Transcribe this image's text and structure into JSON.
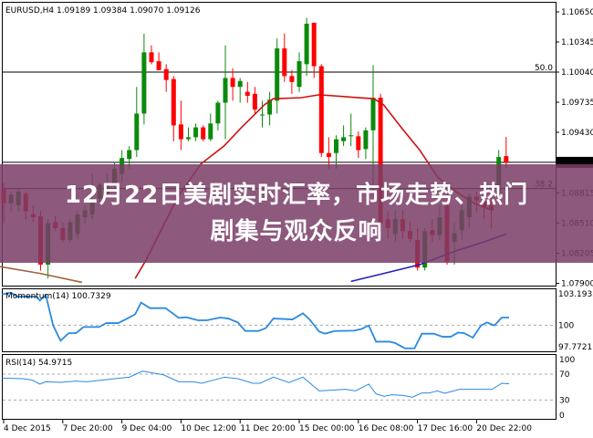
{
  "header": {
    "symbol_line": "EURUSD,H4  1.09189 1.09384 1.09070 1.09126"
  },
  "banner": {
    "line1": "12月22日美剧实时汇率，市场走势、热门",
    "line2": "剧集与观众反响"
  },
  "price_axis": {
    "labels": [
      "1.10650",
      "1.10345",
      "1.10040",
      "1.09735",
      "1.09430",
      "1.08815",
      "1.08510",
      "1.08205",
      "1.07900"
    ],
    "current": "1.09126"
  },
  "levels": [
    {
      "label": "50.0",
      "price": 1.1004
    },
    {
      "label": "38.2",
      "price": 1.0886
    }
  ],
  "momentum": {
    "title": "Momentum(14) 100.7329",
    "axis": [
      "103.1932",
      "100",
      "97.7721"
    ]
  },
  "rsi": {
    "title": "RSI(14) 54.9715",
    "axis": [
      "100",
      "70",
      "30",
      "0"
    ]
  },
  "time_axis": [
    "4 Dec 2015",
    "7 Dec 20:00",
    "9 Dec 04:00",
    "10 Dec 12:00",
    "11 Dec 20:00",
    "15 Dec 00:00",
    "16 Dec 08:00",
    "17 Dec 16:00",
    "20 Dec 22:00"
  ],
  "colors": {
    "bull": "#0b8a0b",
    "bear": "#ff0000",
    "ma": "#d01010",
    "ma_slow": "#a0623a",
    "ma_blue": "#2020c0",
    "indicator": "#2a8ae0",
    "banner": "#7a3e68"
  },
  "chart_data": {
    "type": "candlestick",
    "candles": [
      [
        1.0886,
        1.0892,
        1.0851,
        1.0871
      ],
      [
        1.0871,
        1.0883,
        1.0863,
        1.088
      ],
      [
        1.0869,
        1.0886,
        1.0863,
        1.0883
      ],
      [
        1.0881,
        1.0883,
        1.0855,
        1.0863
      ],
      [
        1.086,
        1.0869,
        1.0852,
        1.0857
      ],
      [
        1.0858,
        1.0864,
        1.0803,
        1.0809
      ],
      [
        1.0809,
        1.0855,
        1.0795,
        1.0851
      ],
      [
        1.0852,
        1.0858,
        1.0843,
        1.0846
      ],
      [
        1.0846,
        1.0852,
        1.0832,
        1.0834
      ],
      [
        1.0834,
        1.0855,
        1.0832,
        1.0852
      ],
      [
        1.084,
        1.0863,
        1.0835,
        1.086
      ],
      [
        1.0857,
        1.0869,
        1.0851,
        1.0864
      ],
      [
        1.086,
        1.0901,
        1.0855,
        1.0872
      ],
      [
        1.0876,
        1.0892,
        1.0869,
        1.089
      ],
      [
        1.0881,
        1.0901,
        1.0876,
        1.089
      ],
      [
        1.0889,
        1.0913,
        1.0883,
        1.0906
      ],
      [
        1.0901,
        1.0925,
        1.0892,
        1.0917
      ],
      [
        1.0916,
        1.0929,
        1.0906,
        1.0925
      ],
      [
        1.0925,
        1.0989,
        1.0918,
        1.0962
      ],
      [
        1.0962,
        1.1043,
        1.0951,
        1.1024
      ],
      [
        1.1024,
        1.1031,
        1.1012,
        1.1014
      ],
      [
        1.1015,
        1.1024,
        1.1006,
        1.1006
      ],
      [
        1.1007,
        1.1012,
        1.0984,
        1.0996
      ],
      [
        1.0997,
        1.1,
        1.0934,
        1.095
      ],
      [
        1.0951,
        1.0975,
        1.0925,
        1.0936
      ],
      [
        1.0936,
        1.0948,
        1.0934,
        1.0938
      ],
      [
        1.0938,
        1.0952,
        1.0934,
        1.0948
      ],
      [
        1.0948,
        1.095,
        1.0934,
        1.0936
      ],
      [
        1.0936,
        1.0962,
        1.0934,
        1.0952
      ],
      [
        1.0952,
        1.0975,
        1.0945,
        1.0973
      ],
      [
        1.0973,
        1.1031,
        1.0936,
        1.0998
      ],
      [
        1.0998,
        1.1008,
        1.0975,
        1.0989
      ],
      [
        1.0989,
        1.0998,
        1.0973,
        1.0995
      ],
      [
        1.0984,
        1.0994,
        1.0973,
        1.098
      ],
      [
        1.0982,
        1.0989,
        1.0962,
        1.0966
      ],
      [
        1.096,
        1.0975,
        1.0948,
        1.0961
      ],
      [
        1.0961,
        1.0984,
        1.095,
        1.0976
      ],
      [
        1.0975,
        1.1038,
        1.0962,
        1.1028
      ],
      [
        1.1028,
        1.1043,
        1.0994,
        1.1
      ],
      [
        1.1,
        1.1006,
        1.0982,
        1.0994
      ],
      [
        1.0989,
        1.1024,
        1.0984,
        1.1015
      ],
      [
        1.1012,
        1.1059,
        1.1,
        1.1053
      ],
      [
        1.1054,
        1.1054,
        1.0998,
        1.101
      ],
      [
        1.101,
        1.1012,
        1.0918,
        1.0922
      ],
      [
        1.0922,
        1.0938,
        1.0906,
        1.0918
      ],
      [
        1.0922,
        1.094,
        1.0906,
        1.0936
      ],
      [
        1.0934,
        1.095,
        1.0929,
        1.0938
      ],
      [
        1.0939,
        1.0962,
        1.0929,
        1.094
      ],
      [
        1.0939,
        1.0944,
        1.0917,
        1.0925
      ],
      [
        1.0926,
        1.0948,
        1.0916,
        1.0945
      ],
      [
        1.0945,
        1.1011,
        1.088,
        1.0978
      ],
      [
        1.0978,
        1.0982,
        1.0846,
        1.0851
      ],
      [
        1.0855,
        1.0863,
        1.0835,
        1.0846
      ],
      [
        1.084,
        1.0864,
        1.0832,
        1.0855
      ],
      [
        1.0855,
        1.0864,
        1.0835,
        1.0843
      ],
      [
        1.0843,
        1.0852,
        1.0832,
        1.0835
      ],
      [
        1.0834,
        1.0846,
        1.0803,
        1.0806
      ],
      [
        1.0806,
        1.0846,
        1.0803,
        1.0843
      ],
      [
        1.0844,
        1.0855,
        1.0832,
        1.0839
      ],
      [
        1.0839,
        1.0869,
        1.0834,
        1.0857
      ],
      [
        1.0869,
        1.0883,
        1.0809,
        1.0812
      ],
      [
        1.0832,
        1.0851,
        1.0809,
        1.0841
      ],
      [
        1.0844,
        1.0869,
        1.0834,
        1.0864
      ],
      [
        1.0857,
        1.0881,
        1.0846,
        1.0878
      ],
      [
        1.0878,
        1.0883,
        1.0863,
        1.0874
      ],
      [
        1.0874,
        1.0881,
        1.0855,
        1.0867
      ],
      [
        1.0869,
        1.0878,
        1.0846,
        1.0864
      ],
      [
        1.0878,
        1.0925,
        1.0869,
        1.0918
      ],
      [
        1.09189,
        1.09384,
        1.0907,
        1.09126
      ]
    ],
    "ma_red": [
      [
        17.8,
        1.0795
      ],
      [
        19.3,
        1.0814
      ],
      [
        21.1,
        1.0841
      ],
      [
        23.6,
        1.0878
      ],
      [
        26.7,
        1.0911
      ],
      [
        29.8,
        1.0929
      ],
      [
        32.2,
        1.0948
      ],
      [
        35.3,
        1.0971
      ],
      [
        36.5,
        1.0977
      ],
      [
        40.2,
        1.0978
      ],
      [
        42.7,
        1.0981
      ],
      [
        50.1,
        1.0977
      ],
      [
        51.4,
        1.0971
      ],
      [
        53.8,
        1.0948
      ],
      [
        56.3,
        1.0925
      ],
      [
        58.8,
        1.0897
      ],
      [
        61.2,
        1.0883
      ],
      [
        63.7,
        1.0871
      ],
      [
        66.2,
        1.0864
      ]
    ],
    "ma_brown": [
      [
        -0.5,
        1.0807
      ],
      [
        5,
        1.08
      ],
      [
        10.6,
        1.0791
      ]
    ],
    "ma_blue": [
      [
        47,
        1.0792
      ],
      [
        51.4,
        1.08
      ],
      [
        56.3,
        1.0809
      ],
      [
        61.2,
        1.0823
      ],
      [
        65,
        1.0832
      ],
      [
        68,
        1.084
      ]
    ],
    "momentum": [
      [
        -0.2,
        102.96
      ],
      [
        1.0,
        103.13
      ],
      [
        1.8,
        102.75
      ],
      [
        4.4,
        102.75
      ],
      [
        4.9,
        102.37
      ],
      [
        5.7,
        102.9
      ],
      [
        6.7,
        99.97
      ],
      [
        7.7,
        98.5
      ],
      [
        8.8,
        99.23
      ],
      [
        9.8,
        99.23
      ],
      [
        10.8,
        99.82
      ],
      [
        12.9,
        99.82
      ],
      [
        13.9,
        100.2
      ],
      [
        15.5,
        100.2
      ],
      [
        16.5,
        100.55
      ],
      [
        17.8,
        101.05
      ],
      [
        18.6,
        102.17
      ],
      [
        19.8,
        101.64
      ],
      [
        21.9,
        101.64
      ],
      [
        23.7,
        100.7
      ],
      [
        24.7,
        100.76
      ],
      [
        26.3,
        100.47
      ],
      [
        27.5,
        100.47
      ],
      [
        29.3,
        100.73
      ],
      [
        30.4,
        100.64
      ],
      [
        31.7,
        100.26
      ],
      [
        32.7,
        99.44
      ],
      [
        34.5,
        99.44
      ],
      [
        35.5,
        99.73
      ],
      [
        36.5,
        100.64
      ],
      [
        39.1,
        100.55
      ],
      [
        40.5,
        101.14
      ],
      [
        41.4,
        100.55
      ],
      [
        42.7,
        99.38
      ],
      [
        43.5,
        99.18
      ],
      [
        44.8,
        99.44
      ],
      [
        47.4,
        99.47
      ],
      [
        48.4,
        99.62
      ],
      [
        49.4,
        99.97
      ],
      [
        50.4,
        98.41
      ],
      [
        52.2,
        98.41
      ],
      [
        53.0,
        98.27
      ],
      [
        54.3,
        97.77
      ],
      [
        55.6,
        97.77
      ],
      [
        56.6,
        99.18
      ],
      [
        58.2,
        99.18
      ],
      [
        59.4,
        98.88
      ],
      [
        60.5,
        98.88
      ],
      [
        61.5,
        99.29
      ],
      [
        62.3,
        99.23
      ],
      [
        63.5,
        98.8
      ],
      [
        64.6,
        99.97
      ],
      [
        65.4,
        100.26
      ],
      [
        66.4,
        99.97
      ],
      [
        67.4,
        100.73
      ],
      [
        68.4,
        100.73
      ]
    ],
    "rsi": [
      [
        -0.2,
        63.9
      ],
      [
        2.6,
        62.9
      ],
      [
        3.9,
        60.6
      ],
      [
        4.9,
        54.5
      ],
      [
        5.7,
        58.2
      ],
      [
        7.7,
        57.3
      ],
      [
        9.8,
        59.2
      ],
      [
        11.3,
        58.2
      ],
      [
        13.9,
        61.5
      ],
      [
        17.0,
        65.3
      ],
      [
        18.8,
        74.7
      ],
      [
        20.1,
        71.9
      ],
      [
        21.6,
        69.1
      ],
      [
        23.7,
        58.2
      ],
      [
        25.7,
        58.2
      ],
      [
        26.8,
        55.9
      ],
      [
        29.9,
        65.3
      ],
      [
        31.7,
        62.9
      ],
      [
        33.7,
        55.9
      ],
      [
        34.7,
        55.9
      ],
      [
        36.5,
        65.3
      ],
      [
        38.6,
        56.9
      ],
      [
        40.5,
        65.3
      ],
      [
        42.7,
        44.1
      ],
      [
        44.8,
        45.5
      ],
      [
        46.3,
        46.5
      ],
      [
        47.6,
        44.1
      ],
      [
        49.4,
        54.5
      ],
      [
        50.4,
        39.4
      ],
      [
        51.5,
        35.6
      ],
      [
        52.5,
        38.0
      ],
      [
        54.0,
        37.1
      ],
      [
        55.3,
        34.2
      ],
      [
        56.6,
        40.8
      ],
      [
        57.6,
        40.8
      ],
      [
        58.7,
        44.1
      ],
      [
        59.7,
        40.4
      ],
      [
        61.7,
        46.5
      ],
      [
        63.8,
        46.5
      ],
      [
        66.1,
        46.5
      ],
      [
        67.4,
        55.9
      ],
      [
        68.4,
        54.97
      ]
    ],
    "price_range": [
      1.079,
      1.1065
    ],
    "momentum_range": [
      97.7721,
      103.1932
    ],
    "rsi_range": [
      0,
      100
    ],
    "rsi_levels": [
      70,
      30
    ],
    "momentum_level": 100,
    "time_label_every": 8
  }
}
